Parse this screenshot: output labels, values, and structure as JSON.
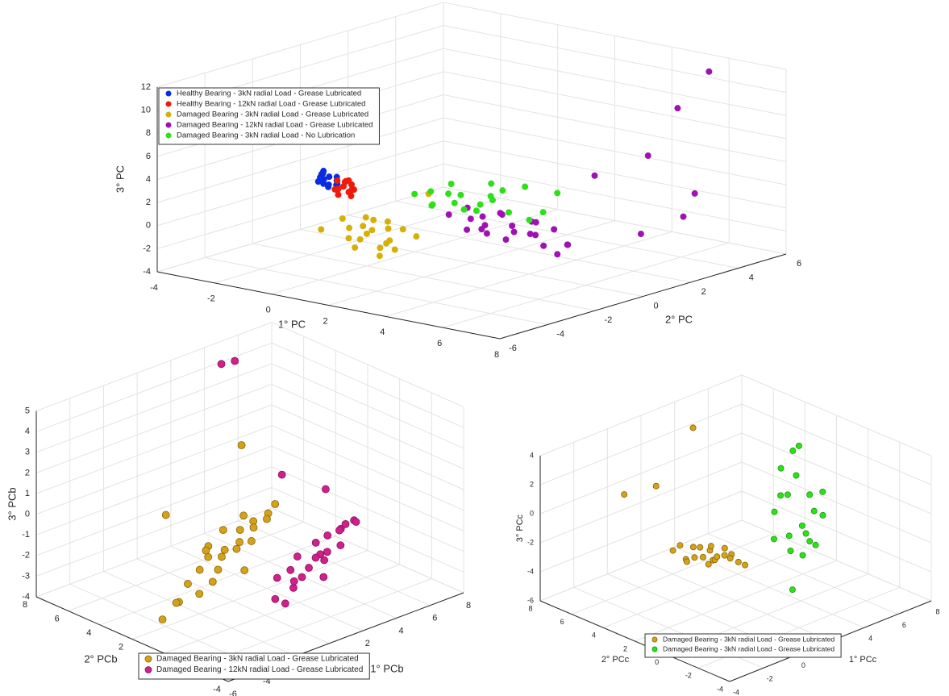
{
  "chart_data": [
    {
      "type": "scatter3d",
      "xlabel": "1° PC",
      "ylabel": "2° PC",
      "zlabel": "3° PC",
      "xlim": [
        -4,
        8
      ],
      "ylim": [
        -6,
        6
      ],
      "zlim": [
        -4,
        12
      ],
      "xticks": [
        -4,
        -2,
        0,
        2,
        4,
        6,
        8
      ],
      "yticks": [
        -6,
        -4,
        -2,
        0,
        2,
        4,
        6
      ],
      "zticks": [
        -4,
        -2,
        0,
        2,
        4,
        6,
        8,
        10,
        12
      ],
      "grid": true,
      "series": [
        {
          "name": "Healthy Bearing - 3kN radial Load - Grease Lubricated",
          "color": "#0a2be0",
          "x": [
            -0.7,
            -0.5,
            -0.3,
            -0.6,
            -0.4,
            -0.8,
            -0.5,
            -0.2,
            -0.6,
            -0.4,
            -0.7,
            -0.3,
            -0.5,
            -0.6
          ],
          "y": [
            -3.0,
            -3.2,
            -2.9,
            -3.1,
            -2.8,
            -3.0,
            -3.3,
            -3.0,
            -2.9,
            -3.1,
            -3.2,
            -2.9,
            -3.0,
            -3.1
          ],
          "z": [
            4.3,
            4.0,
            3.8,
            3.5,
            3.3,
            3.9,
            4.5,
            3.6,
            3.1,
            4.2,
            3.7,
            4.1,
            3.4,
            4.6
          ]
        },
        {
          "name": "Healthy Bearing - 12kN radial Load - Grease Lubricated",
          "color": "#ee1a0a",
          "x": [
            -0.2,
            0.1,
            0.3,
            0.0,
            0.2,
            -0.1,
            0.4,
            0.1,
            0.2,
            -0.2,
            0.3,
            0.0,
            0.1,
            0.2
          ],
          "y": [
            -3.0,
            -3.1,
            -2.9,
            -3.2,
            -3.0,
            -2.8,
            -3.1,
            -3.0,
            -2.9,
            -3.1,
            -3.0,
            -3.2,
            -2.8,
            -3.0
          ],
          "z": [
            3.9,
            3.6,
            3.3,
            2.9,
            3.1,
            3.7,
            3.5,
            4.0,
            2.7,
            3.2,
            3.8,
            3.4,
            3.0,
            4.1
          ]
        },
        {
          "name": "Damaged Bearing - 3kN radial Load - Grease Lubricated",
          "color": "#d6b00a",
          "x": [
            -0.6,
            -0.1,
            0.3,
            0.6,
            0.9,
            1.1,
            1.3,
            1.5,
            1.8,
            2.1,
            2.4,
            0.5,
            0.8,
            1.2,
            1.6,
            1.0,
            0.2,
            1.4,
            1.9,
            0.7,
            3.0
          ],
          "y": [
            -3.2,
            -2.9,
            -3.1,
            -3.0,
            -2.8,
            -3.1,
            -3.0,
            -2.9,
            -3.2,
            -3.0,
            -2.8,
            -3.1,
            -3.0,
            -2.9,
            -3.1,
            -3.2,
            -3.0,
            -2.8,
            -3.1,
            -3.0,
            -3.0
          ],
          "z": [
            -0.4,
            0.6,
            0.1,
            -0.8,
            0.9,
            0.3,
            -1.2,
            0.5,
            -0.2,
            0.8,
            0.2,
            -1.5,
            1.2,
            -2.0,
            -0.6,
            0.0,
            -0.9,
            1.0,
            -1.0,
            0.4,
            4.3
          ]
        },
        {
          "name": "Damaged Bearing - 12kN radial Load - Grease Lubricated",
          "color": "#a010b4",
          "x": [
            1.2,
            1.6,
            2.0,
            2.3,
            2.6,
            2.9,
            3.2,
            3.5,
            3.8,
            4.1,
            4.4,
            4.8,
            5.2,
            5.6,
            2.2,
            2.8,
            3.4,
            4.0,
            4.6,
            3.0,
            1.8,
            5.0,
            5.3,
            4.2,
            4.0,
            4.8,
            4.4,
            3.75,
            3.8
          ],
          "y": [
            0.0,
            0.3,
            -0.2,
            0.1,
            -0.3,
            0.2,
            0.0,
            -0.1,
            0.3,
            0.0,
            -0.2,
            0.1,
            0.2,
            -0.3,
            0.4,
            -0.4,
            0.1,
            0.3,
            -0.1,
            0.0,
            0.2,
            0.0,
            6,
            6,
            5,
            6,
            6,
            5,
            3
          ],
          "z": [
            -0.2,
            0.4,
            -1.0,
            0.1,
            -0.6,
            0.5,
            -1.4,
            0.0,
            -0.8,
            0.6,
            -0.3,
            0.2,
            -1.0,
            -0.5,
            -1.6,
            -0.1,
            -0.7,
            0.3,
            -1.2,
            0.8,
            -0.4,
            -1.8,
            10.5,
            6.8,
            3.2,
            -0.3,
            -2.5,
            -3.7,
            2.6
          ]
        },
        {
          "name": "Damaged Bearing - 3kN radial Load - No Lubrication",
          "color": "#2ee01a",
          "x": [
            0.0,
            0.4,
            0.8,
            1.1,
            1.4,
            1.7,
            2.0,
            2.3,
            2.6,
            2.9,
            3.3,
            3.7,
            4.1,
            4.5,
            1.2,
            1.9,
            2.5,
            0.6,
            3.0,
            5.0
          ],
          "y": [
            0.0,
            0.2,
            -0.2,
            0.1,
            0.0,
            -0.1,
            0.2,
            0.0,
            0.1,
            -0.2,
            0.0,
            0.2,
            -0.1,
            0.0,
            0.1,
            -0.2,
            0.2,
            0.0,
            0.1,
            0.0
          ],
          "z": [
            1.0,
            1.3,
            0.6,
            1.5,
            0.9,
            1.8,
            0.4,
            1.2,
            3.1,
            2.0,
            1.0,
            3.3,
            0.8,
            1.6,
            2.4,
            0.7,
            1.9,
            0.3,
            2.7,
            3.5
          ]
        }
      ]
    },
    {
      "type": "scatter3d",
      "xlabel": "1° PCb",
      "ylabel": "2° PCb",
      "zlabel": "3° PCb",
      "xlim": [
        -6,
        8
      ],
      "ylim": [
        -4,
        8
      ],
      "zlim": [
        -4,
        5
      ],
      "xticks": [
        -6,
        -4,
        -2,
        0,
        2,
        4,
        6,
        8
      ],
      "yticks": [
        -4,
        -2,
        0,
        2,
        4,
        6,
        8
      ],
      "zticks": [
        -4,
        -3,
        -2,
        -1,
        0,
        1,
        2,
        3,
        4,
        5
      ],
      "grid": true,
      "series": [
        {
          "name": "Damaged Bearing - 3kN radial Load - Grease Lubricated",
          "color": "#d4a21a",
          "edgecolor": "#8a6400",
          "x": [
            -4.2,
            -3.6,
            -3.0,
            -2.6,
            -2.2,
            -1.8,
            -1.5,
            -1.2,
            -0.9,
            -0.6,
            -0.3,
            0.0,
            0.3,
            0.6,
            0.9,
            1.2,
            1.5,
            1.8,
            2.1,
            2.4,
            -1.0,
            0.2,
            1.0,
            -2.0,
            -0.4,
            -4.0,
            0.5
          ],
          "y": [
            2.0,
            1.6,
            2.4,
            2.1,
            1.8,
            2.2,
            1.7,
            2.3,
            2.0,
            1.9,
            2.4,
            1.6,
            2.1,
            2.2,
            1.8,
            2.0,
            2.3,
            1.7,
            2.1,
            1.9,
            2.5,
            1.5,
            2.4,
            1.6,
            2.2,
            2,
            2
          ],
          "z": [
            -3.6,
            -2.8,
            -3.3,
            -2.4,
            -2.9,
            -2.0,
            -2.5,
            -1.6,
            -2.2,
            -1.3,
            -1.9,
            -1.0,
            -1.6,
            -0.8,
            -1.3,
            -0.5,
            -1.0,
            -0.2,
            -0.7,
            0.0,
            -1.2,
            -2.4,
            -0.3,
            -0.8,
            -0.5,
            1.4,
            3.4
          ]
        },
        {
          "name": "Damaged Bearing - 12kN radial Load - Grease Lubricated",
          "color": "#d0208a",
          "edgecolor": "#8a1060",
          "x": [
            0.6,
            1.0,
            1.4,
            1.7,
            2.0,
            2.3,
            2.6,
            2.9,
            3.1,
            3.3,
            3.6,
            3.9,
            4.2,
            4.5,
            4.8,
            5.1,
            5.5,
            2.2,
            3.0,
            3.8,
            4.4,
            1.2,
            -0.7,
            0.1,
            1.0,
            3.6
          ],
          "y": [
            0.0,
            0.3,
            -0.3,
            0.2,
            -0.2,
            0.4,
            0.0,
            -0.4,
            0.1,
            0.3,
            -0.1,
            0.2,
            -0.3,
            0.0,
            0.4,
            -0.2,
            0.1,
            0.5,
            -0.5,
            0.3,
            -0.4,
            0.0,
            2,
            2,
            0,
            0
          ],
          "z": [
            -3.4,
            -2.6,
            -3.0,
            -2.4,
            -2.7,
            -2.0,
            -2.5,
            -1.8,
            -2.2,
            -1.6,
            -2.0,
            -1.4,
            -1.8,
            -1.2,
            -1.5,
            -0.9,
            -1.2,
            -3.2,
            -2.9,
            -2.6,
            -0.8,
            -3.8,
            7.7,
            7.6,
            2.5,
            1.0
          ]
        }
      ]
    },
    {
      "type": "scatter3d",
      "xlabel": "1° PCc",
      "ylabel": "2° PCc",
      "zlabel": "3° PCc",
      "xlim": [
        -4,
        8
      ],
      "ylim": [
        -4,
        8
      ],
      "zlim": [
        -6,
        4
      ],
      "xticks": [
        -4,
        -2,
        0,
        2,
        4,
        6,
        8
      ],
      "yticks": [
        -4,
        -2,
        0,
        2,
        4,
        6,
        8
      ],
      "zticks": [
        -6,
        -4,
        -2,
        0,
        2,
        4
      ],
      "grid": true,
      "series": [
        {
          "name": "Damaged Bearing - 3kN radial Load - Grease Lubricated",
          "color": "#d4a21a",
          "edgecolor": "#8a6400",
          "x": [
            -0.8,
            -0.4,
            0.0,
            0.3,
            0.6,
            0.9,
            1.1,
            1.3,
            1.5,
            1.7,
            1.9,
            2.2,
            2.5,
            2.8,
            3.1,
            3.4,
            0.5,
            1.0,
            1.6,
            2.0,
            0.4,
            -3.7,
            -1.8
          ],
          "y": [
            3.0,
            2.6,
            3.4,
            2.8,
            3.2,
            2.9,
            3.3,
            2.7,
            3.1,
            3.0,
            2.6,
            3.4,
            2.8,
            3.2,
            3.0,
            2.9,
            3.5,
            2.5,
            3.3,
            2.7,
            3,
            3,
            3
          ],
          "z": [
            -1.7,
            -2.3,
            -1.9,
            -2.6,
            -2.2,
            -2.9,
            -2.5,
            -3.2,
            -2.8,
            -3.5,
            -3.1,
            -3.7,
            -3.4,
            -4.0,
            -4.3,
            -4.6,
            -3.3,
            -2.0,
            -3.9,
            -2.7,
            6.2,
            3.5,
            3.2
          ]
        },
        {
          "name": "Damaged Bearing - 3kN radial Load - Grease Lubricated",
          "color": "#2ee01a",
          "edgecolor": "#1a9a10",
          "x": [
            2.4,
            2.8,
            3.1,
            3.4,
            3.7,
            4.0,
            4.3,
            4.6,
            4.9,
            5.2,
            3.0,
            3.6,
            4.2,
            4.8,
            2.6,
            3.3,
            3.9,
            4.5,
            5.4,
            3.5
          ],
          "y": [
            0.0,
            0.4,
            -0.3,
            0.2,
            -0.4,
            0.3,
            0.0,
            -0.2,
            0.4,
            -0.1,
            0.2,
            -0.3,
            0.1,
            0.3,
            -0.2,
            0.0,
            0.4,
            -0.4,
            0.1,
            0.0
          ],
          "z": [
            -1.0,
            0.5,
            -2.0,
            1.5,
            -0.5,
            2.5,
            -1.5,
            0.0,
            -2.5,
            1.0,
            3.5,
            5.0,
            -3.0,
            0.8,
            2.0,
            -1.2,
            4.2,
            -2.2,
            -0.8,
            -5.0
          ]
        }
      ]
    }
  ]
}
